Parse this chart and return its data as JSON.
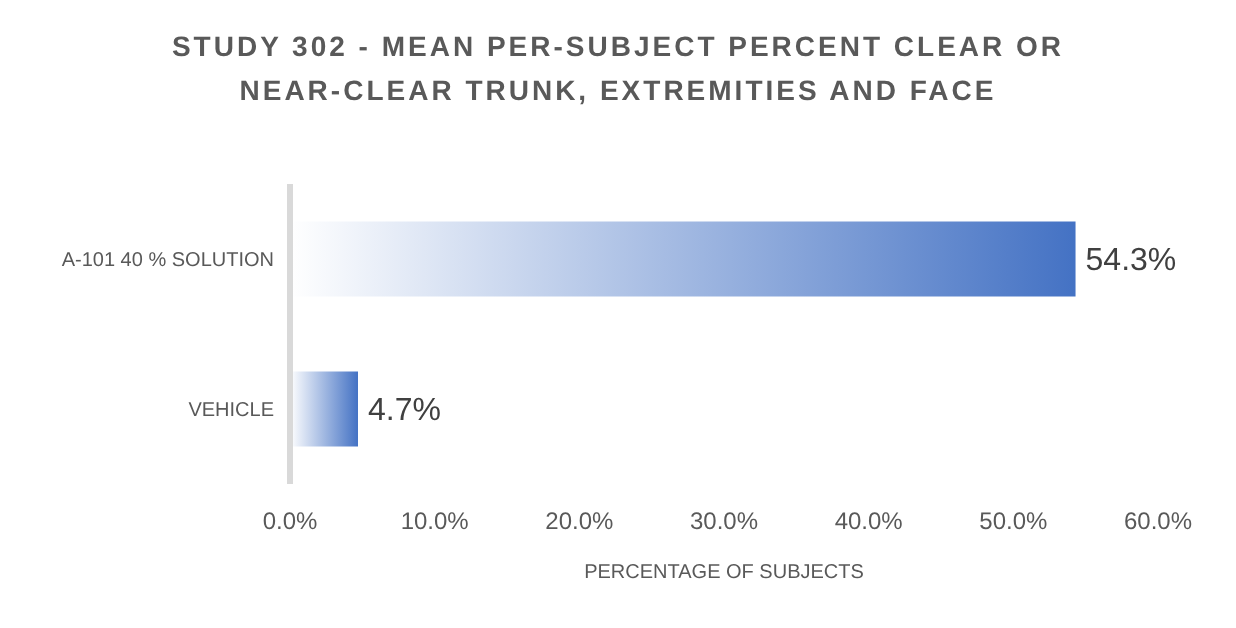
{
  "chart_data": {
    "type": "bar",
    "orientation": "horizontal",
    "title": "STUDY 302 - MEAN PER-SUBJECT PERCENT CLEAR OR NEAR-CLEAR TRUNK, EXTREMITIES AND FACE",
    "xlabel": "PERCENTAGE  OF SUBJECTS",
    "categories": [
      "A-101 40 % SOLUTION",
      "VEHICLE"
    ],
    "values": [
      54.3,
      4.7
    ],
    "value_labels": [
      "54.3%",
      "4.7%"
    ],
    "color": "#4472c4",
    "xlim": [
      0,
      60
    ],
    "xticks": [
      {
        "value": 0,
        "label": "0.0%"
      },
      {
        "value": 10,
        "label": "10.0%"
      },
      {
        "value": 20,
        "label": "20.0%"
      },
      {
        "value": 30,
        "label": "30.0%"
      },
      {
        "value": 40,
        "label": "40.0%"
      },
      {
        "value": 50,
        "label": "50.0%"
      },
      {
        "value": 60,
        "label": "60.0%"
      }
    ],
    "grid": false
  }
}
